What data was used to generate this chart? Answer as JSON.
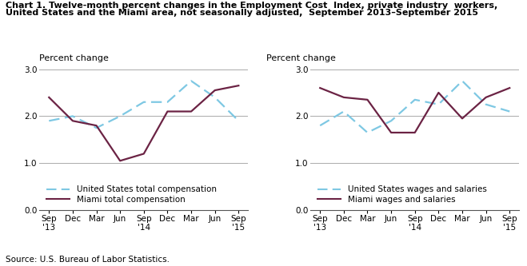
{
  "title_line1": "Chart 1. Twelve-month percent changes in the Employment Cost  Index, private industry  workers,",
  "title_line2": "United States and the Miami area, not seasonally adjusted,  September 2013–September 2015",
  "source": "Source: U.S. Bureau of Labor Statistics.",
  "ylabel": "Percent change",
  "x_labels": [
    "Sep\n'13",
    "Dec",
    "Mar",
    "Jun",
    "Sep\n'14",
    "Dec",
    "Mar",
    "Jun",
    "Sep\n'15"
  ],
  "x_positions": [
    0,
    1,
    2,
    3,
    4,
    5,
    6,
    7,
    8
  ],
  "ylim": [
    0.0,
    3.0
  ],
  "yticks": [
    0.0,
    1.0,
    2.0,
    3.0
  ],
  "hlines": [
    1.0,
    2.0,
    3.0
  ],
  "chart1": {
    "us_total": [
      1.9,
      2.0,
      1.75,
      2.0,
      2.3,
      2.3,
      2.75,
      2.4,
      1.9
    ],
    "miami_total": [
      2.4,
      1.9,
      1.8,
      1.05,
      1.2,
      2.1,
      2.1,
      2.55,
      2.65
    ],
    "legend1": "United States total compensation",
    "legend2": "Miami total compensation"
  },
  "chart2": {
    "us_wages": [
      1.8,
      2.1,
      1.65,
      1.9,
      2.35,
      2.25,
      2.75,
      2.25,
      2.1
    ],
    "miami_wages": [
      2.6,
      2.4,
      2.35,
      1.65,
      1.65,
      2.5,
      1.95,
      2.4,
      2.6
    ],
    "legend1": "United States wages and salaries",
    "legend2": "Miami wages and salaries"
  },
  "us_color": "#7EC8E3",
  "miami_color": "#6B2344",
  "linewidth": 1.6,
  "title_fontsize": 8.0,
  "ylabel_fontsize": 8.0,
  "tick_fontsize": 7.5,
  "legend_fontsize": 7.5,
  "source_fontsize": 7.5
}
